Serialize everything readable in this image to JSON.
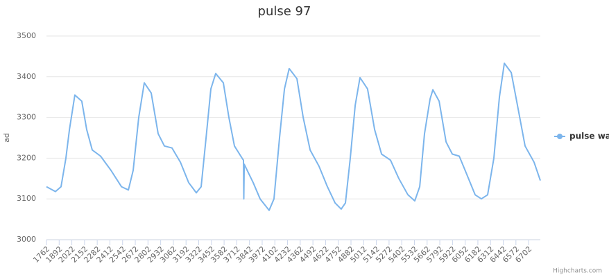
{
  "chart_data": {
    "type": "line",
    "title": "pulse 97",
    "y_label": "ad",
    "credits": "Highcharts.com",
    "legend_position": "right",
    "grid": true,
    "x": [
      1762,
      1854,
      1911,
      1961,
      1997,
      2053,
      2124,
      2174,
      2231,
      2316,
      2423,
      2530,
      2601,
      2650,
      2707,
      2764,
      2835,
      2906,
      2970,
      3048,
      3134,
      3219,
      3297,
      3347,
      3397,
      3446,
      3496,
      3574,
      3631,
      3688,
      3766,
      3780,
      3784,
      3788,
      3880,
      3951,
      4043,
      4093,
      4150,
      4200,
      4249,
      4328,
      4392,
      4463,
      4555,
      4640,
      4719,
      4782,
      4825,
      4875,
      4925,
      4974,
      5052,
      5124,
      5195,
      5287,
      5372,
      5465,
      5536,
      5586,
      5635,
      5692,
      5721,
      5785,
      5856,
      5920,
      5991,
      6069,
      6154,
      6218,
      6282,
      6346,
      6403,
      6453,
      6524,
      6595,
      6666,
      6758,
      6822
    ],
    "series": [
      {
        "name": "pulse wave",
        "color": "#7cb5ec",
        "values": [
          3130,
          3118,
          3130,
          3200,
          3270,
          3355,
          3340,
          3270,
          3220,
          3205,
          3170,
          3130,
          3122,
          3170,
          3300,
          3385,
          3360,
          3260,
          3230,
          3225,
          3190,
          3140,
          3115,
          3130,
          3250,
          3370,
          3408,
          3385,
          3300,
          3230,
          3200,
          3195,
          3100,
          3185,
          3140,
          3100,
          3072,
          3100,
          3250,
          3370,
          3420,
          3395,
          3300,
          3220,
          3180,
          3130,
          3090,
          3075,
          3090,
          3200,
          3330,
          3398,
          3370,
          3270,
          3210,
          3195,
          3150,
          3110,
          3095,
          3130,
          3260,
          3345,
          3368,
          3340,
          3240,
          3210,
          3205,
          3160,
          3110,
          3100,
          3110,
          3200,
          3350,
          3433,
          3410,
          3320,
          3230,
          3190,
          3145
        ]
      }
    ],
    "xlim": [
      1762,
      6822
    ],
    "xticks": [
      1762,
      1892,
      2022,
      2152,
      2282,
      2412,
      2542,
      2672,
      2802,
      2932,
      3062,
      3192,
      3322,
      3452,
      3582,
      3712,
      3842,
      3972,
      4102,
      4232,
      4362,
      4492,
      4622,
      4752,
      4882,
      5012,
      5142,
      5272,
      5402,
      5532,
      5662,
      5792,
      5922,
      6052,
      6182,
      6312,
      6442,
      6572,
      6702
    ],
    "ylim": [
      3000,
      3500
    ],
    "yticks": [
      3000,
      3100,
      3200,
      3300,
      3400,
      3500
    ]
  }
}
